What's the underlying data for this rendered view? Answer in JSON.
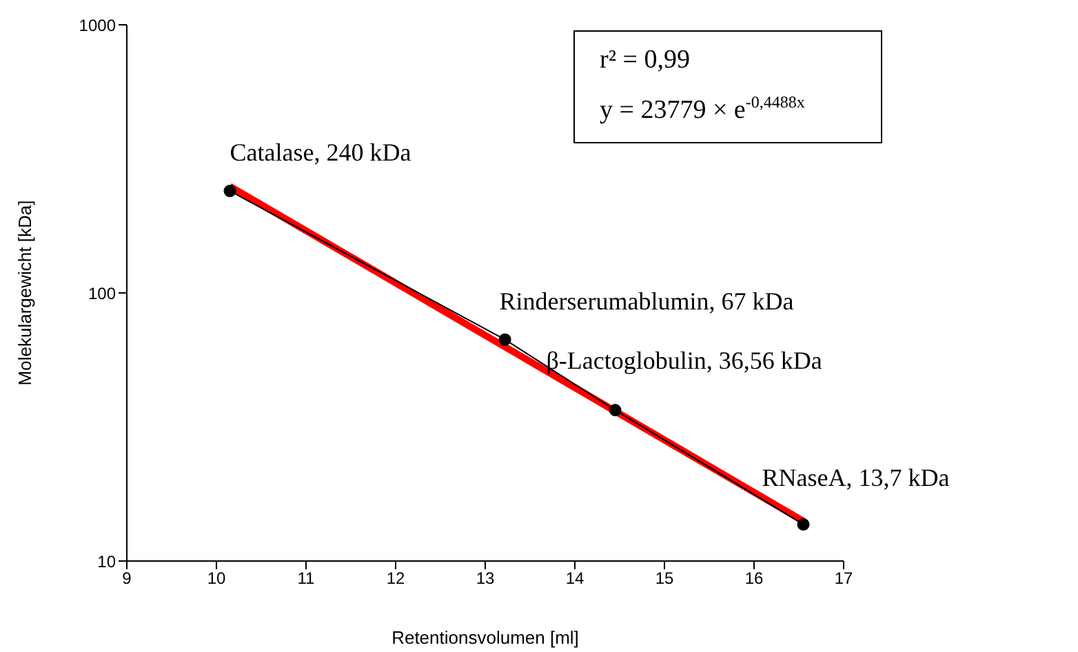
{
  "chart_data": {
    "type": "line",
    "xlabel": "Retentionsvolumen [ml]",
    "ylabel": "Molekulargewicht [kDa]",
    "log": "y",
    "xlim": [
      9,
      17
    ],
    "xticks": [
      9,
      10,
      11,
      12,
      13,
      14,
      15,
      16,
      17
    ],
    "ylim": [
      10,
      1000
    ],
    "yticks": [
      10,
      100,
      1000
    ],
    "grid": false,
    "legend": false,
    "marker": "circle",
    "line_style": "solid",
    "series": [
      {
        "color": "#000000",
        "x": [
          10.15,
          13.22,
          14.45,
          16.55
        ],
        "values": [
          240,
          67,
          36.56,
          13.7
        ]
      },
      {
        "color": "#ff0000",
        "x": [
          10.15,
          16.55
        ],
        "values": [
          250,
          14.1
        ],
        "marker": "none"
      }
    ],
    "annotations": [
      {
        "text": "Catalase, 240 kDa",
        "x": 10.15,
        "y": 240
      },
      {
        "text": "Rinderserumablumin, 67 kDa",
        "x": 13.22,
        "y": 67
      },
      {
        "text": "β-Lactoglobulin, 36,56 kDa",
        "x": 14.45,
        "y": 36.56
      },
      {
        "text": "RNaseA, 13,7 kDa",
        "x": 16.55,
        "y": 13.7
      },
      "r² = 0,99\ny = 23779 × e$^{-0,4488x}$"
    ]
  }
}
